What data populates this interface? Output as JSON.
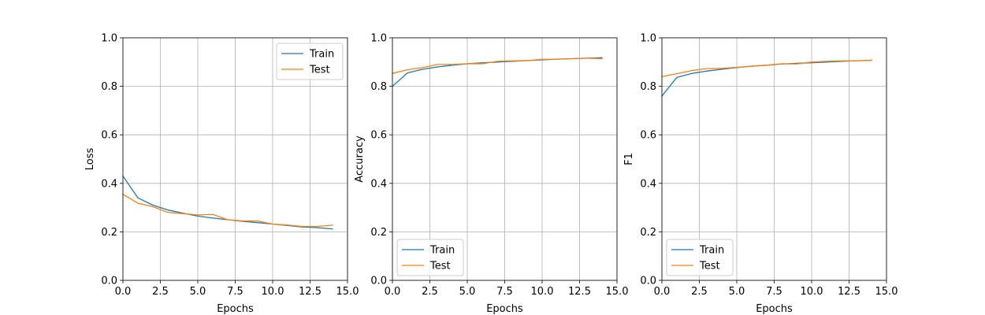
{
  "chart_data": [
    {
      "type": "line",
      "title": "",
      "xlabel": "Epochs",
      "ylabel": "Loss",
      "xlim": [
        0,
        15
      ],
      "ylim": [
        0,
        1
      ],
      "xticks": [
        "0.0",
        "2.5",
        "5.0",
        "7.5",
        "10.0",
        "12.5",
        "15.0"
      ],
      "yticks": [
        "0.0",
        "0.2",
        "0.4",
        "0.6",
        "0.8",
        "1.0"
      ],
      "grid": true,
      "legend": "upper-right",
      "x": [
        0,
        1,
        2,
        3,
        4,
        5,
        6,
        7,
        8,
        9,
        10,
        11,
        12,
        13,
        14
      ],
      "series": [
        {
          "name": "Train",
          "color": "#1f77b4",
          "values": [
            0.43,
            0.34,
            0.31,
            0.29,
            0.277,
            0.265,
            0.257,
            0.25,
            0.243,
            0.238,
            0.232,
            0.226,
            0.22,
            0.217,
            0.212
          ]
        },
        {
          "name": "Test",
          "color": "#ff7f0e",
          "values": [
            0.355,
            0.318,
            0.304,
            0.28,
            0.275,
            0.27,
            0.272,
            0.25,
            0.245,
            0.245,
            0.232,
            0.228,
            0.222,
            0.222,
            0.228
          ]
        }
      ]
    },
    {
      "type": "line",
      "title": "",
      "xlabel": "Epochs",
      "ylabel": "Accuracy",
      "xlim": [
        0,
        15
      ],
      "ylim": [
        0,
        1
      ],
      "xticks": [
        "0.0",
        "2.5",
        "5.0",
        "7.5",
        "10.0",
        "12.5",
        "15.0"
      ],
      "yticks": [
        "0.0",
        "0.2",
        "0.4",
        "0.6",
        "0.8",
        "1.0"
      ],
      "grid": true,
      "legend": "lower-left",
      "x": [
        0,
        1,
        2,
        3,
        4,
        5,
        6,
        7,
        8,
        9,
        10,
        11,
        12,
        13,
        14
      ],
      "series": [
        {
          "name": "Train",
          "color": "#1f77b4",
          "values": [
            0.8,
            0.855,
            0.87,
            0.88,
            0.887,
            0.893,
            0.897,
            0.9,
            0.903,
            0.906,
            0.909,
            0.912,
            0.914,
            0.916,
            0.918
          ]
        },
        {
          "name": "Test",
          "color": "#ff7f0e",
          "values": [
            0.853,
            0.868,
            0.877,
            0.89,
            0.89,
            0.893,
            0.893,
            0.903,
            0.905,
            0.906,
            0.911,
            0.912,
            0.914,
            0.916,
            0.914
          ]
        }
      ]
    },
    {
      "type": "line",
      "title": "",
      "xlabel": "Epochs",
      "ylabel": "F1",
      "xlim": [
        0,
        15
      ],
      "ylim": [
        0,
        1
      ],
      "xticks": [
        "0.0",
        "2.5",
        "5.0",
        "7.5",
        "10.0",
        "12.5",
        "15.0"
      ],
      "yticks": [
        "0.0",
        "0.2",
        "0.4",
        "0.6",
        "0.8",
        "1.0"
      ],
      "grid": true,
      "legend": "lower-left",
      "x": [
        0,
        1,
        2,
        3,
        4,
        5,
        6,
        7,
        8,
        9,
        10,
        11,
        12,
        13,
        14
      ],
      "series": [
        {
          "name": "Train",
          "color": "#1f77b4",
          "values": [
            0.76,
            0.837,
            0.853,
            0.863,
            0.87,
            0.877,
            0.883,
            0.887,
            0.892,
            0.895,
            0.897,
            0.9,
            0.903,
            0.905,
            0.907
          ]
        },
        {
          "name": "Test",
          "color": "#ff7f0e",
          "values": [
            0.84,
            0.852,
            0.865,
            0.873,
            0.874,
            0.878,
            0.883,
            0.887,
            0.893,
            0.892,
            0.9,
            0.903,
            0.905,
            0.905,
            0.908
          ]
        }
      ]
    }
  ]
}
